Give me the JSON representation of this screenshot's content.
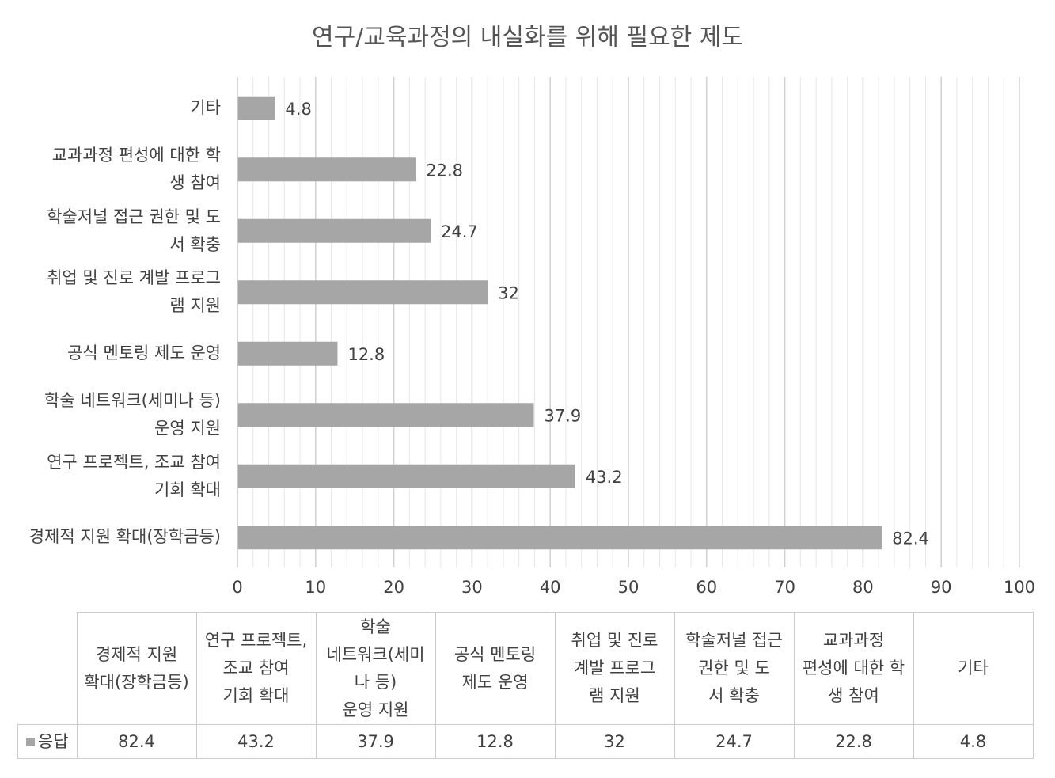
{
  "chart_data": {
    "type": "bar",
    "orientation": "horizontal",
    "title": "연구/교육과정의 내실화를 위해 필요한 제도",
    "categories": [
      "경제적 지원 확대(장학금등)",
      "연구 프로젝트, 조교 참여 기회 확대",
      "학술 네트워크(세미나 등) 운영 지원",
      "공식 멘토링 제도 운영",
      "취업 및 진로 계발 프로그램 지원",
      "학술저널 접근 권한 및 도서 확충",
      "교과과정 편성에 대한 학생 참여",
      "기타"
    ],
    "axis_labels": [
      "경제적 지원 확대(장학금등)",
      "연구 프로젝트, 조교 참여\n기회 확대",
      "학술 네트워크(세미나 등)\n운영 지원",
      "공식 멘토링 제도 운영",
      "취업 및 진로 계발 프로그\n램 지원",
      "학술저널 접근 권한 및 도\n서 확충",
      "교과과정 편성에 대한 학\n생 참여",
      "기타"
    ],
    "series": [
      {
        "name": "응답",
        "values": [
          82.4,
          43.2,
          37.9,
          12.8,
          32,
          24.7,
          22.8,
          4.8
        ],
        "labels": [
          "82.4",
          "43.2",
          "37.9",
          "12.8",
          "32",
          "24.7",
          "22.8",
          "4.8"
        ]
      }
    ],
    "xlim": [
      0,
      100
    ],
    "xticks": [
      "0",
      "10",
      "20",
      "30",
      "40",
      "50",
      "60",
      "70",
      "80",
      "90",
      "100"
    ],
    "major_grid_step": 10,
    "minor_grid_step": 2,
    "grid": true,
    "bar_color": "#a6a6a6",
    "legend": "data-table",
    "table_headers": [
      "경제적 지원\n확대(장학금등)",
      "연구 프로젝트,\n조교 참여\n기회 확대",
      "학술\n네트워크(세미\n나 등)\n운영 지원",
      "공식 멘토링\n제도 운영",
      "취업 및 진로\n계발 프로그\n램 지원",
      "학술저널 접근\n권한 및 도\n서 확충",
      "교과과정\n편성에 대한 학\n생 참여",
      "기타"
    ]
  }
}
